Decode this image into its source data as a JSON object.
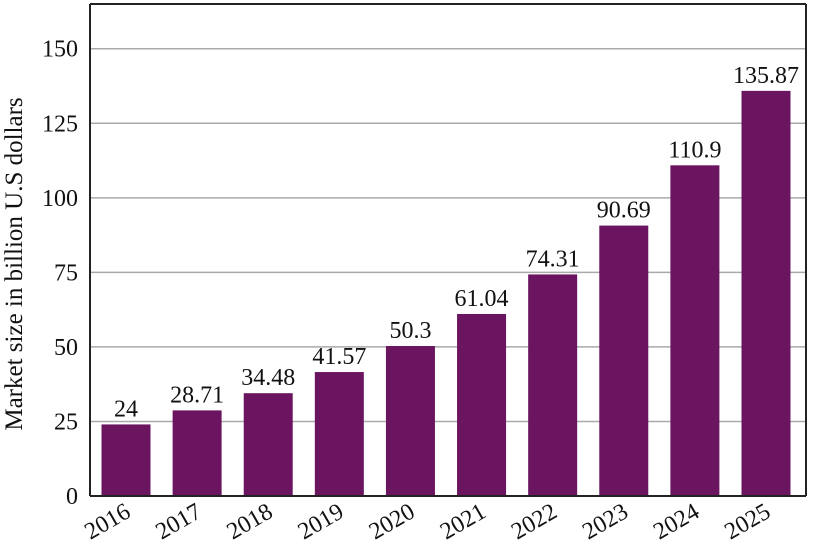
{
  "chart_data": {
    "type": "bar",
    "categories": [
      "2016",
      "2017",
      "2018",
      "2019",
      "2020",
      "2021",
      "2022",
      "2023",
      "2024",
      "2025"
    ],
    "values": [
      24,
      28.71,
      34.48,
      41.57,
      50.3,
      61.04,
      74.31,
      90.69,
      110.9,
      135.87
    ],
    "data_labels": [
      "24",
      "28.71",
      "34.48",
      "41.57",
      "50.3",
      "61.04",
      "74.31",
      "90.69",
      "110.9",
      "135.87"
    ],
    "xlabel": "",
    "ylabel": "Market size in billion U.S dollars",
    "ylim": [
      0,
      165
    ],
    "yticks": [
      0,
      25,
      50,
      75,
      100,
      125,
      150
    ],
    "ytick_labels": [
      "0",
      "25",
      "50",
      "75",
      "100",
      "125",
      "150"
    ],
    "grid": true,
    "legend": "none",
    "bar_color": "#6b1560",
    "grid_color": "#a9a9a9"
  }
}
